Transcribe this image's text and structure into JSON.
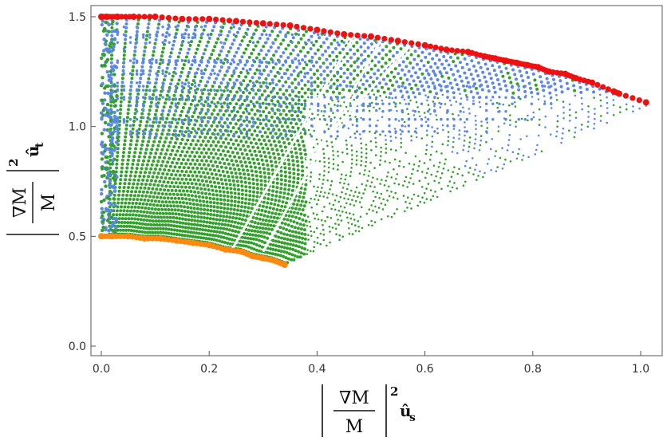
{
  "chart_data": {
    "type": "scatter",
    "title": "",
    "xlim": [
      0.0,
      1.02
    ],
    "ylim": [
      0.0,
      1.5
    ],
    "x_ticks": [
      "0.0",
      "0.2",
      "0.4",
      "0.6",
      "0.8",
      "1.0"
    ],
    "y_ticks": [
      "0.0",
      "0.5",
      "1.0",
      "1.5"
    ],
    "xlabel": {
      "numerator": "∇M",
      "denominator": "M",
      "exponent": "2",
      "symbol": "û",
      "subscript": "s"
    },
    "ylabel": {
      "numerator": "∇M",
      "denominator": "M",
      "exponent": "2",
      "symbol": "û",
      "subscript": "t"
    },
    "grid": false,
    "legend": "none",
    "colors": {
      "upper_boundary": "#ee1111",
      "lower_boundary": "#ff8811",
      "blue_region": "#5b88e6",
      "green_region": "#33a02c"
    },
    "series": [
      {
        "role": "upper boundary",
        "x": [
          0.0,
          0.01,
          0.03,
          0.06,
          0.1,
          0.15,
          0.2,
          0.25,
          0.3,
          0.35,
          0.4,
          0.45,
          0.5,
          0.55,
          0.6,
          0.64,
          0.68,
          0.71,
          0.73,
          0.75,
          0.77,
          0.79,
          0.81,
          0.83,
          0.86,
          0.88,
          0.91,
          0.95,
          0.96,
          1.01
        ],
        "y": [
          1.5,
          1.5,
          1.5,
          1.5,
          1.5,
          1.49,
          1.49,
          1.48,
          1.47,
          1.46,
          1.44,
          1.42,
          1.41,
          1.39,
          1.37,
          1.35,
          1.34,
          1.32,
          1.31,
          1.3,
          1.29,
          1.28,
          1.27,
          1.25,
          1.24,
          1.22,
          1.2,
          1.16,
          1.15,
          1.11
        ]
      },
      {
        "role": "lower boundary",
        "x": [
          0.0,
          0.02,
          0.05,
          0.08,
          0.11,
          0.14,
          0.17,
          0.2,
          0.23,
          0.26,
          0.28,
          0.3,
          0.32,
          0.34
        ],
        "y": [
          0.5,
          0.5,
          0.5,
          0.49,
          0.49,
          0.48,
          0.47,
          0.46,
          0.44,
          0.43,
          0.41,
          0.4,
          0.39,
          0.37
        ]
      },
      {
        "role": "blue region",
        "x": [
          0.0,
          0.01,
          0.02,
          0.3,
          0.55,
          0.64,
          1.01,
          0.6,
          0.3,
          0.1,
          0.02
        ],
        "y": [
          0.5,
          1.5,
          0.5,
          1.47,
          1.39,
          1.35,
          1.11,
          0.95,
          0.9,
          0.95,
          1.45
        ]
      },
      {
        "role": "green region",
        "x": [
          0.02,
          0.1,
          0.2,
          0.3,
          0.35,
          0.45,
          0.55,
          0.65,
          0.4,
          0.34
        ],
        "y": [
          0.5,
          1.46,
          1.45,
          1.4,
          0.37,
          0.55,
          0.75,
          0.95,
          1.3,
          0.37
        ]
      }
    ]
  }
}
